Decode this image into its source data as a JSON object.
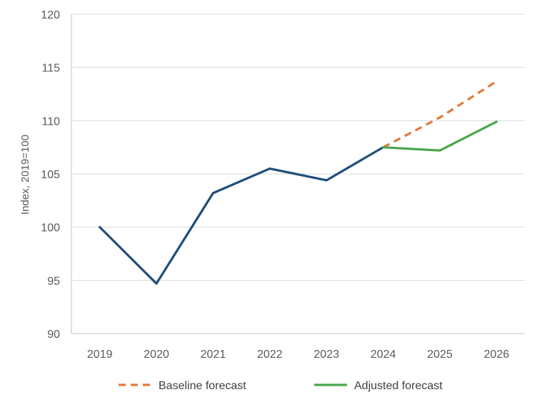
{
  "chart_data": {
    "type": "line",
    "title": "",
    "xlabel": "",
    "ylabel": "Index, 2019=100",
    "x": [
      "2019",
      "2020",
      "2021",
      "2022",
      "2023",
      "2024",
      "2025",
      "2026"
    ],
    "ylim": [
      90,
      120
    ],
    "yticks": [
      90,
      95,
      100,
      105,
      110,
      115,
      120
    ],
    "grid": true,
    "legend_position": "bottom",
    "series": [
      {
        "name": "",
        "color": "#1F4E79",
        "style": "solid",
        "points": [
          {
            "x": "2019",
            "y": 100.0
          },
          {
            "x": "2020",
            "y": 94.7
          },
          {
            "x": "2021",
            "y": 103.2
          },
          {
            "x": "2022",
            "y": 105.5
          },
          {
            "x": "2023",
            "y": 104.4
          },
          {
            "x": "2024",
            "y": 107.5
          }
        ]
      },
      {
        "name": "Baseline forecast",
        "color": "#E07B39",
        "style": "dashed",
        "points": [
          {
            "x": "2024",
            "y": 107.5
          },
          {
            "x": "2025",
            "y": 110.3
          },
          {
            "x": "2026",
            "y": 113.7
          }
        ]
      },
      {
        "name": "Adjusted forecast",
        "color": "#4CA64C",
        "style": "solid",
        "points": [
          {
            "x": "2024",
            "y": 107.5
          },
          {
            "x": "2025",
            "y": 107.2
          },
          {
            "x": "2026",
            "y": 109.9
          }
        ]
      }
    ],
    "legend": [
      "Baseline forecast",
      "Adjusted forecast"
    ]
  }
}
